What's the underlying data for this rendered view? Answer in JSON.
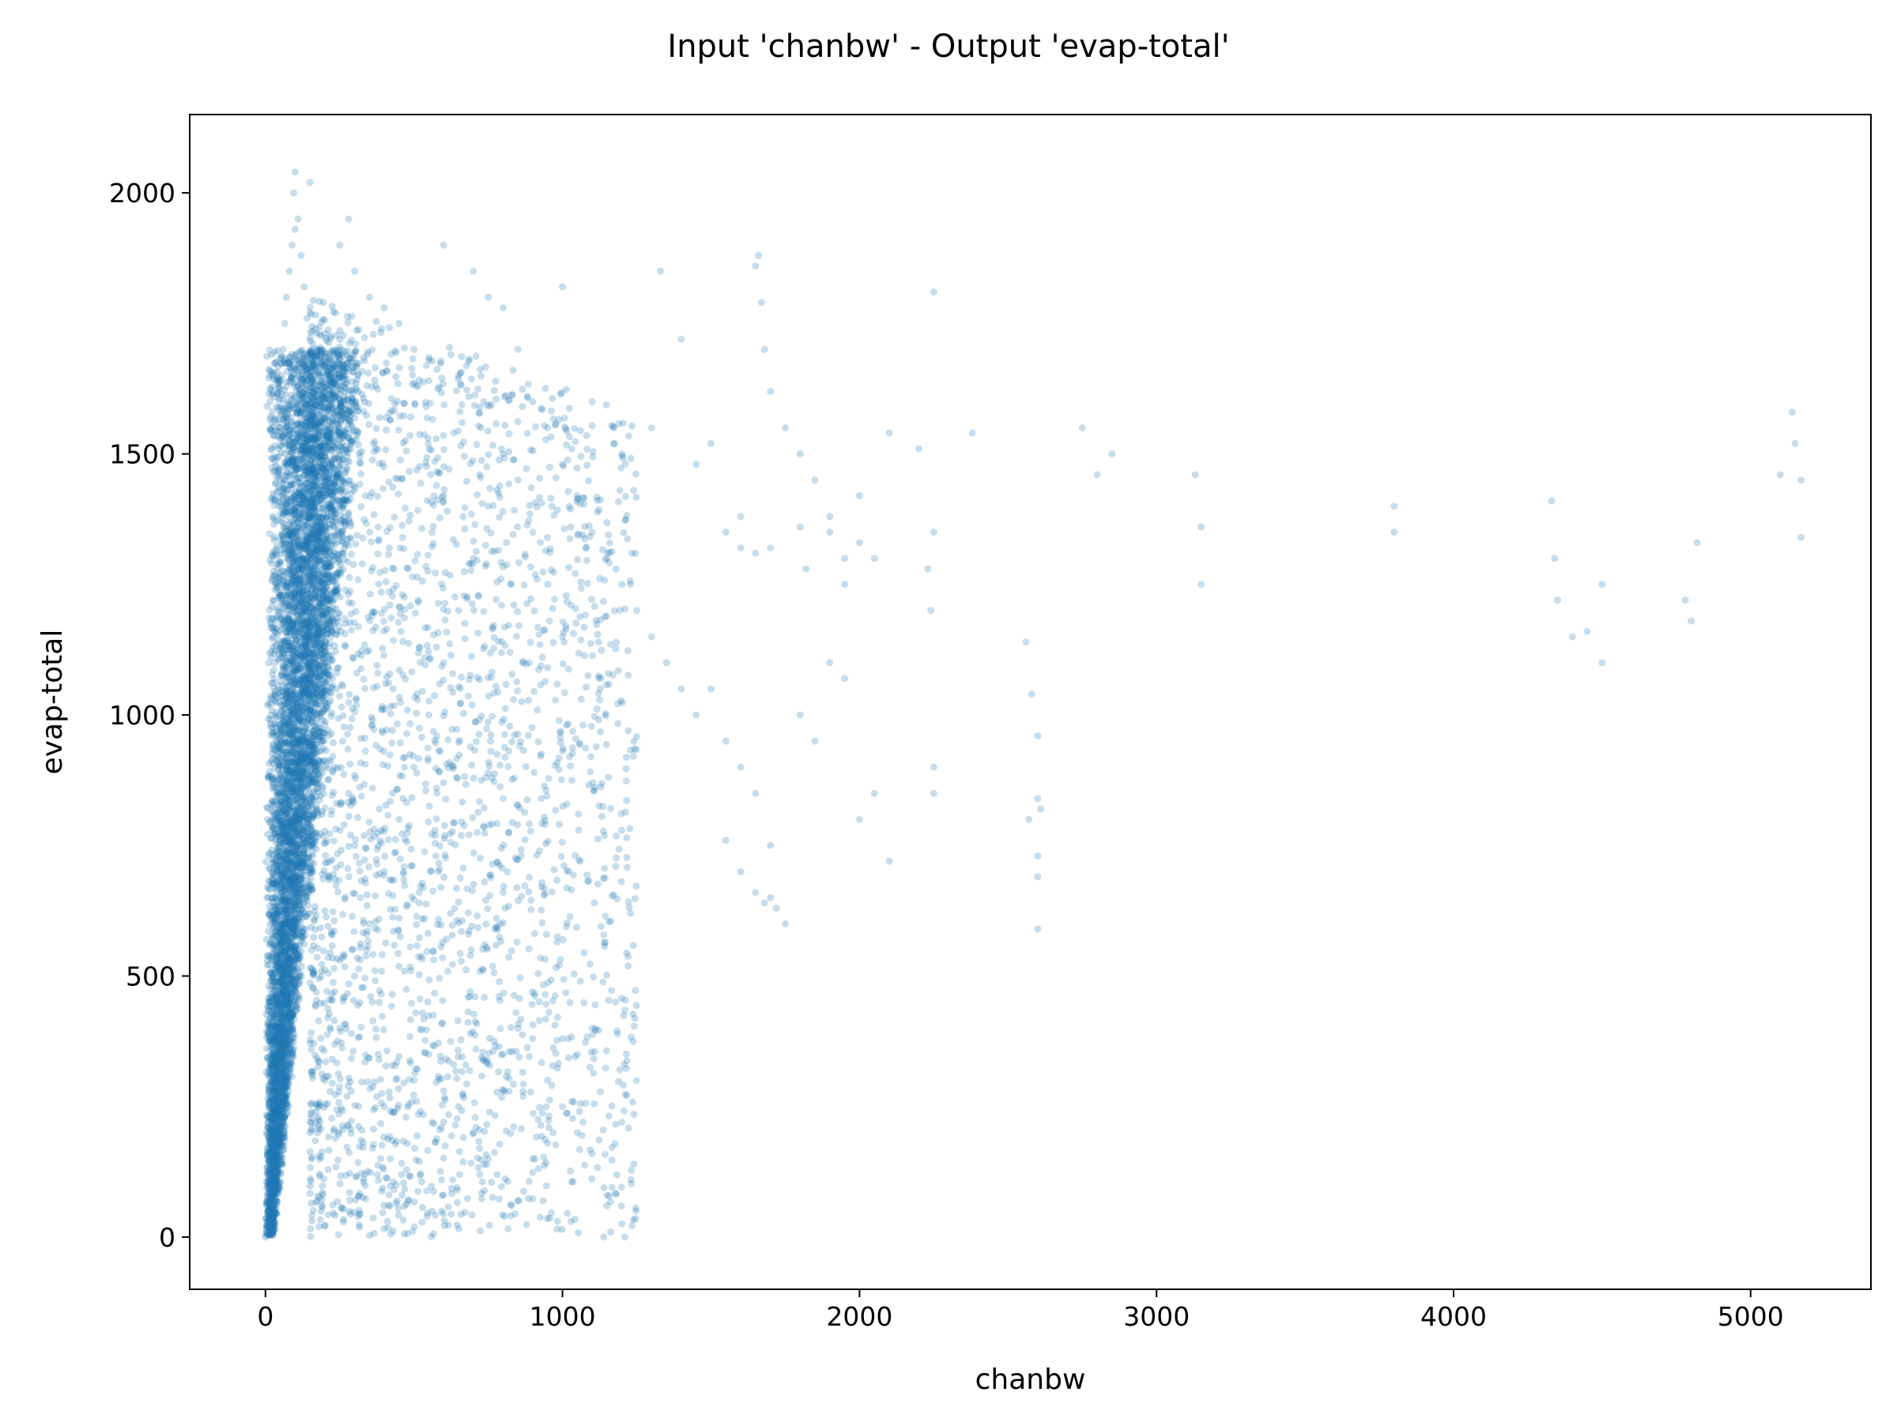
{
  "chart_data": {
    "type": "scatter",
    "title": "Input 'chanbw' - Output 'evap-total'",
    "xlabel": "chanbw",
    "ylabel": "evap-total",
    "xlim": [
      -255,
      5405
    ],
    "ylim": [
      -100,
      2150
    ],
    "xticks": [
      0,
      1000,
      2000,
      3000,
      4000,
      5000
    ],
    "yticks": [
      0,
      500,
      1000,
      1500,
      2000
    ],
    "xtick_labels": [
      "0",
      "1000",
      "2000",
      "3000",
      "4000",
      "5000"
    ],
    "ytick_labels": [
      "0",
      "500",
      "1000",
      "1500",
      "2000"
    ],
    "grid": false,
    "legend": "none",
    "marker_color": "#1f77b4",
    "marker_alpha": 0.25,
    "series": [
      {
        "points": [
          [
            0,
            0
          ],
          [
            5,
            30
          ],
          [
            10,
            120
          ],
          [
            15,
            250
          ],
          [
            20,
            400
          ],
          [
            25,
            600
          ],
          [
            30,
            800
          ],
          [
            35,
            1000
          ],
          [
            40,
            1200
          ],
          [
            45,
            1400
          ],
          [
            50,
            1550
          ],
          [
            55,
            1650
          ],
          [
            60,
            1700
          ],
          [
            65,
            1750
          ],
          [
            70,
            1800
          ],
          [
            80,
            1850
          ],
          [
            90,
            1900
          ],
          [
            100,
            1930
          ],
          [
            110,
            1950
          ],
          [
            95,
            2000
          ],
          [
            100,
            2040
          ],
          [
            150,
            2020
          ],
          [
            120,
            1880
          ],
          [
            130,
            1820
          ],
          [
            140,
            1760
          ],
          [
            160,
            1700
          ],
          [
            180,
            1650
          ],
          [
            200,
            1600
          ],
          [
            220,
            1550
          ],
          [
            250,
            1500
          ],
          [
            20,
            100
          ],
          [
            40,
            300
          ],
          [
            60,
            500
          ],
          [
            80,
            700
          ],
          [
            100,
            900
          ],
          [
            120,
            1100
          ],
          [
            140,
            1300
          ],
          [
            160,
            1450
          ],
          [
            180,
            1350
          ],
          [
            200,
            1250
          ],
          [
            220,
            1150
          ],
          [
            240,
            1050
          ],
          [
            260,
            950
          ],
          [
            280,
            850
          ],
          [
            300,
            750
          ],
          [
            320,
            650
          ],
          [
            340,
            550
          ],
          [
            360,
            450
          ],
          [
            380,
            350
          ],
          [
            400,
            250
          ],
          [
            420,
            150
          ],
          [
            440,
            100
          ],
          [
            460,
            80
          ],
          [
            480,
            70
          ],
          [
            150,
            200
          ],
          [
            200,
            300
          ],
          [
            250,
            400
          ],
          [
            300,
            500
          ],
          [
            350,
            600
          ],
          [
            400,
            700
          ],
          [
            450,
            800
          ],
          [
            500,
            900
          ],
          [
            550,
            1000
          ],
          [
            600,
            1100
          ],
          [
            650,
            1200
          ],
          [
            700,
            1300
          ],
          [
            750,
            1400
          ],
          [
            800,
            1500
          ],
          [
            850,
            1450
          ],
          [
            900,
            1350
          ],
          [
            950,
            1250
          ],
          [
            1000,
            1150
          ],
          [
            280,
            1950
          ],
          [
            250,
            1900
          ],
          [
            300,
            1850
          ],
          [
            350,
            1800
          ],
          [
            400,
            1780
          ],
          [
            450,
            1750
          ],
          [
            500,
            1700
          ],
          [
            550,
            1680
          ],
          [
            600,
            1900
          ],
          [
            650,
            1650
          ],
          [
            700,
            1850
          ],
          [
            750,
            1800
          ],
          [
            800,
            1780
          ],
          [
            850,
            1700
          ],
          [
            900,
            1600
          ],
          [
            950,
            1550
          ],
          [
            1000,
            1480
          ],
          [
            1050,
            1420
          ],
          [
            1100,
            1350
          ],
          [
            1150,
            1300
          ],
          [
            1200,
            1250
          ],
          [
            1250,
            1200
          ],
          [
            1300,
            1150
          ],
          [
            1350,
            1100
          ],
          [
            1400,
            1050
          ],
          [
            1450,
            1000
          ],
          [
            500,
            300
          ],
          [
            550,
            350
          ],
          [
            600,
            280
          ],
          [
            650,
            250
          ],
          [
            700,
            200
          ],
          [
            750,
            150
          ],
          [
            780,
            120
          ],
          [
            800,
            350
          ],
          [
            850,
            400
          ],
          [
            900,
            380
          ],
          [
            950,
            300
          ],
          [
            1000,
            250
          ],
          [
            1050,
            200
          ],
          [
            1100,
            160
          ],
          [
            1150,
            80
          ],
          [
            1150,
            60
          ],
          [
            1200,
            220
          ],
          [
            1230,
            110
          ],
          [
            1240,
            140
          ],
          [
            1100,
            400
          ],
          [
            1050,
            350
          ],
          [
            1000,
            380
          ],
          [
            950,
            180
          ],
          [
            900,
            150
          ],
          [
            1000,
            1820
          ],
          [
            1100,
            1600
          ],
          [
            1200,
            1500
          ],
          [
            1300,
            1550
          ],
          [
            1330,
            1850
          ],
          [
            1400,
            1720
          ],
          [
            1450,
            1480
          ],
          [
            1500,
            1520
          ],
          [
            1550,
            1350
          ],
          [
            1600,
            1320
          ],
          [
            1650,
            1860
          ],
          [
            1660,
            1880
          ],
          [
            1670,
            1790
          ],
          [
            1680,
            1700
          ],
          [
            1700,
            1620
          ],
          [
            1750,
            1550
          ],
          [
            1800,
            1500
          ],
          [
            1850,
            1450
          ],
          [
            1900,
            1350
          ],
          [
            1950,
            1300
          ],
          [
            2000,
            1420
          ],
          [
            2100,
            1540
          ],
          [
            2200,
            1510
          ],
          [
            2250,
            1810
          ],
          [
            2250,
            1350
          ],
          [
            2380,
            1540
          ],
          [
            2750,
            1550
          ],
          [
            2800,
            1460
          ],
          [
            2850,
            1500
          ],
          [
            3130,
            1460
          ],
          [
            3150,
            1250
          ],
          [
            3150,
            1360
          ],
          [
            3800,
            1400
          ],
          [
            3800,
            1350
          ],
          [
            4330,
            1410
          ],
          [
            4340,
            1300
          ],
          [
            4350,
            1220
          ],
          [
            4400,
            1150
          ],
          [
            4450,
            1160
          ],
          [
            4500,
            1250
          ],
          [
            4500,
            1100
          ],
          [
            4780,
            1220
          ],
          [
            4800,
            1180
          ],
          [
            4820,
            1330
          ],
          [
            5100,
            1460
          ],
          [
            5140,
            1580
          ],
          [
            5150,
            1520
          ],
          [
            5170,
            1450
          ],
          [
            5170,
            1340
          ],
          [
            1500,
            1050
          ],
          [
            1550,
            950
          ],
          [
            1600,
            900
          ],
          [
            1650,
            850
          ],
          [
            1700,
            750
          ],
          [
            1700,
            650
          ],
          [
            1750,
            600
          ],
          [
            1800,
            1000
          ],
          [
            1850,
            950
          ],
          [
            1900,
            1100
          ],
          [
            1950,
            1070
          ],
          [
            2000,
            800
          ],
          [
            2050,
            850
          ],
          [
            2100,
            720
          ],
          [
            2250,
            900
          ],
          [
            2250,
            850
          ],
          [
            2230,
            1280
          ],
          [
            2240,
            1200
          ],
          [
            2560,
            1140
          ],
          [
            2580,
            1040
          ],
          [
            2600,
            960
          ],
          [
            2600,
            840
          ],
          [
            2610,
            820
          ],
          [
            2600,
            730
          ],
          [
            2600,
            690
          ],
          [
            2600,
            590
          ],
          [
            2570,
            800
          ],
          [
            1550,
            760
          ],
          [
            1600,
            700
          ],
          [
            1650,
            660
          ],
          [
            1680,
            640
          ],
          [
            1720,
            630
          ],
          [
            1600,
            1380
          ],
          [
            1650,
            1310
          ],
          [
            1700,
            1320
          ],
          [
            1800,
            1360
          ],
          [
            1820,
            1280
          ],
          [
            1900,
            1380
          ],
          [
            1950,
            1250
          ],
          [
            2000,
            1330
          ],
          [
            2050,
            1300
          ]
        ]
      }
    ]
  }
}
